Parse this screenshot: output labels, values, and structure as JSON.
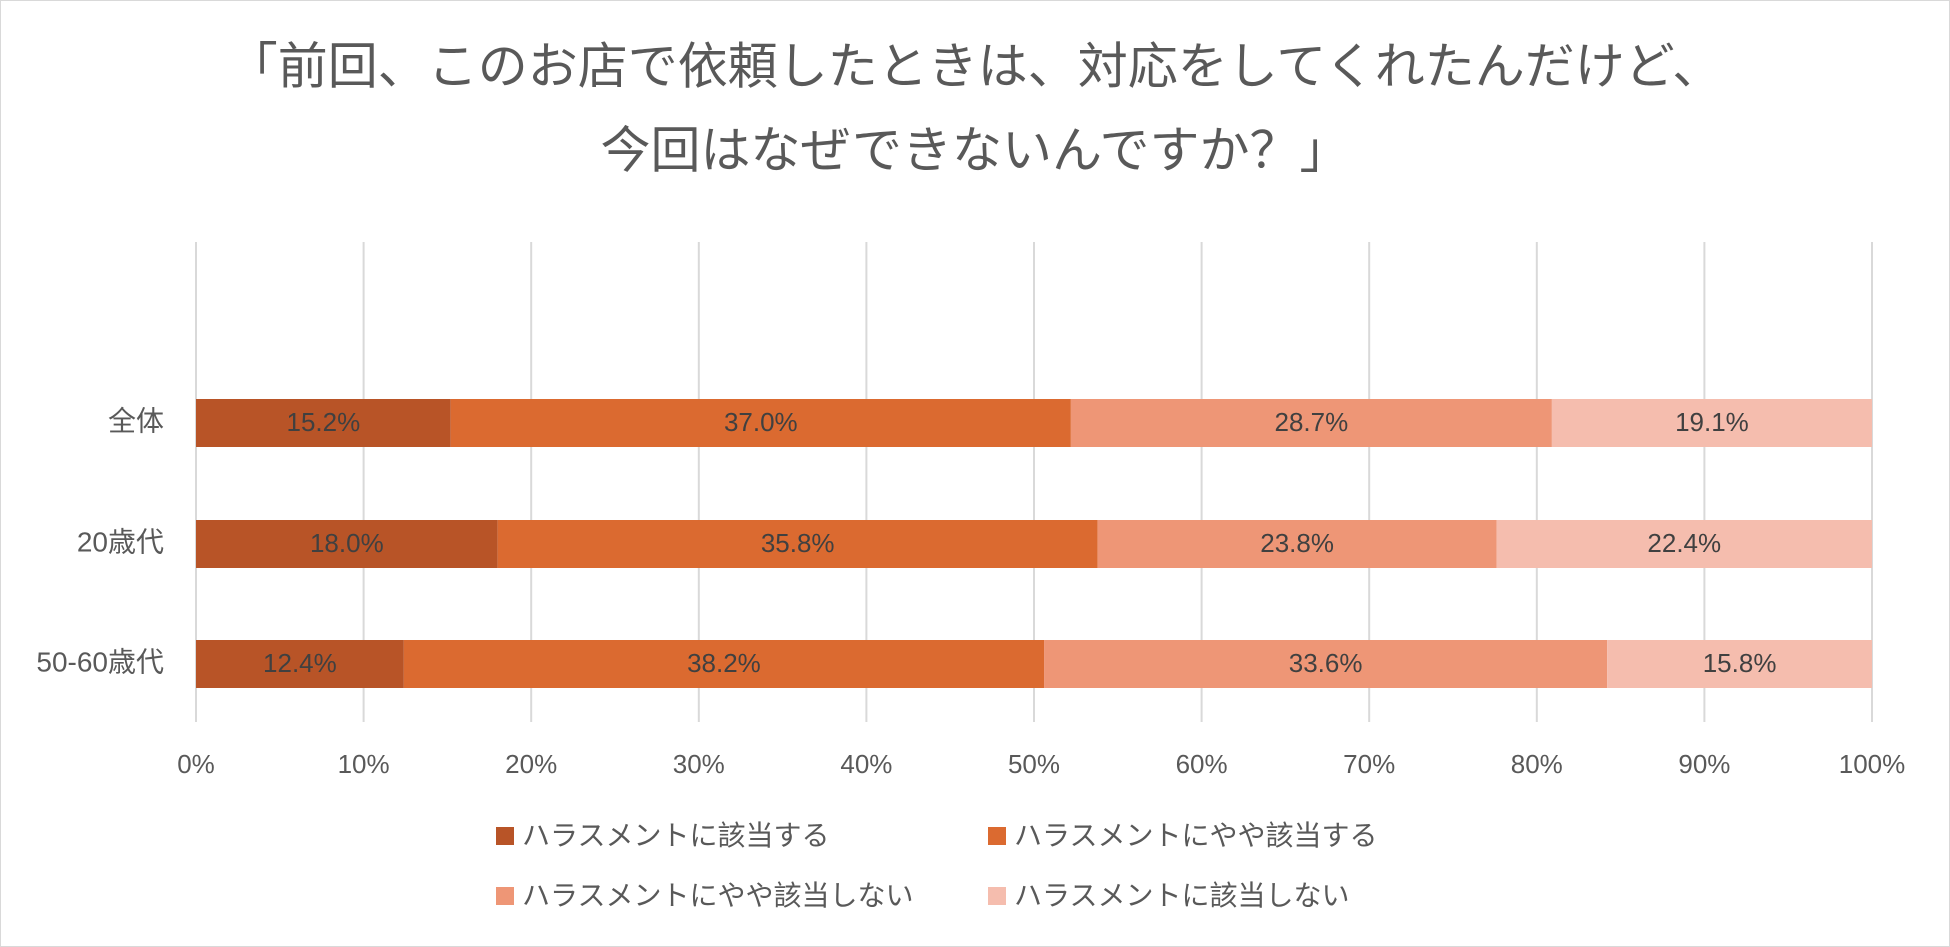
{
  "chart_data": {
    "type": "bar",
    "orientation": "horizontal",
    "stacked": "percent",
    "title_lines": [
      "「前回、このお店で依頼したときは、対応をしてくれたんだけど、",
      "今回はなぜできないんですか？」"
    ],
    "categories": [
      "全体",
      "20歳代",
      "50-60歳代"
    ],
    "series": [
      {
        "name": "ハラスメントに該当する",
        "values": [
          15.2,
          18.0,
          12.4
        ],
        "labels": [
          "15.2%",
          "18.0%",
          "12.4%"
        ],
        "color": "#b85427"
      },
      {
        "name": "ハラスメントにやや該当する",
        "values": [
          37.0,
          35.8,
          38.2
        ],
        "labels": [
          "37.0%",
          "35.8%",
          "38.2%"
        ],
        "color": "#db6a30"
      },
      {
        "name": "ハラスメントにやや該当しない",
        "values": [
          28.7,
          23.8,
          33.6
        ],
        "labels": [
          "28.7%",
          "23.8%",
          "33.6%"
        ],
        "color": "#ee9676"
      },
      {
        "name": "ハラスメントに該当しない",
        "values": [
          19.1,
          22.4,
          15.8
        ],
        "labels": [
          "19.1%",
          "22.4%",
          "15.8%"
        ],
        "color": "#f5bdae"
      }
    ],
    "xlim": [
      0,
      100
    ],
    "x_ticks": [
      "0%",
      "10%",
      "20%",
      "30%",
      "40%",
      "50%",
      "60%",
      "70%",
      "80%",
      "90%",
      "100%"
    ],
    "grid": true,
    "legend_position": "bottom",
    "colors": {
      "gridline": "#d9d9d9",
      "text": "#595959",
      "label": "#404040"
    }
  }
}
